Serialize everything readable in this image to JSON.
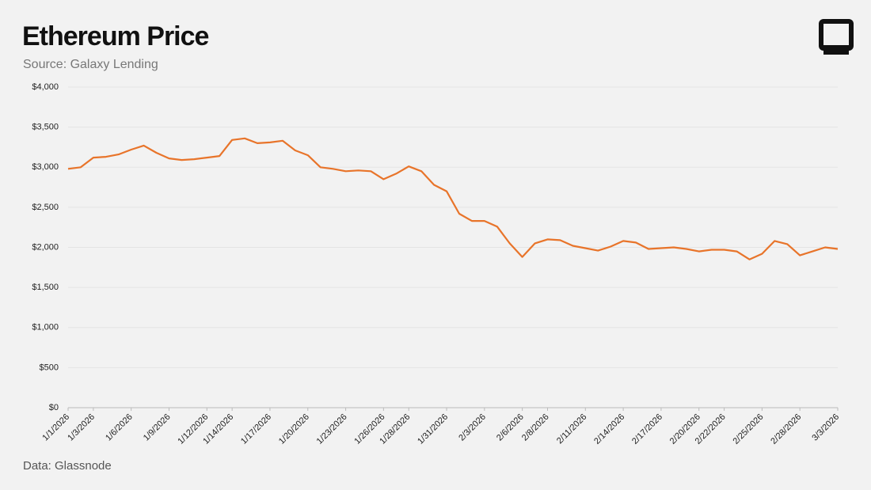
{
  "chart_data": {
    "type": "line",
    "title": "Ethereum Price",
    "subtitle": "Source: Galaxy Lending",
    "note": "Data: Glassnode",
    "x": [
      "1/1/2026",
      "1/2/2026",
      "1/3/2026",
      "1/4/2026",
      "1/5/2026",
      "1/6/2026",
      "1/7/2026",
      "1/8/2026",
      "1/9/2026",
      "1/10/2026",
      "1/11/2026",
      "1/12/2026",
      "1/13/2026",
      "1/14/2026",
      "1/15/2026",
      "1/16/2026",
      "1/17/2026",
      "1/18/2026",
      "1/19/2026",
      "1/20/2026",
      "1/21/2026",
      "1/22/2026",
      "1/23/2026",
      "1/24/2026",
      "1/25/2026",
      "1/26/2026",
      "1/27/2026",
      "1/28/2026",
      "1/29/2026",
      "1/30/2026",
      "1/31/2026",
      "2/1/2026",
      "2/2/2026",
      "2/3/2026",
      "2/4/2026",
      "2/5/2026",
      "2/6/2026",
      "2/7/2026",
      "2/8/2026",
      "2/9/2026",
      "2/10/2026",
      "2/11/2026",
      "2/12/2026",
      "2/13/2026",
      "2/14/2026",
      "2/15/2026",
      "2/16/2026",
      "2/17/2026",
      "2/18/2026",
      "2/19/2026",
      "2/20/2026",
      "2/21/2026",
      "2/22/2026",
      "2/23/2026",
      "2/24/2026",
      "2/25/2026",
      "2/26/2026",
      "2/27/2026",
      "2/28/2026",
      "3/1/2026",
      "3/2/2026",
      "3/3/2026"
    ],
    "series": [
      {
        "name": "Ethereum Price",
        "color": "#e8742a",
        "values": [
          2980,
          3000,
          3120,
          3130,
          3160,
          3220,
          3270,
          3180,
          3110,
          3090,
          3100,
          3120,
          3140,
          3340,
          3360,
          3300,
          3310,
          3330,
          3210,
          3150,
          3000,
          2980,
          2950,
          2960,
          2950,
          2850,
          2920,
          3010,
          2950,
          2780,
          2700,
          2420,
          2330,
          2330,
          2260,
          2050,
          1880,
          2050,
          2100,
          2090,
          2020,
          1990,
          1960,
          2010,
          2080,
          2060,
          1980,
          1990,
          2000,
          1980,
          1950,
          1970,
          1970,
          1950,
          1850,
          1920,
          2080,
          2040,
          1900,
          1950,
          2000,
          1980
        ]
      }
    ],
    "xlim": [
      "1/1/2026",
      "3/3/2026"
    ],
    "xticks": [
      "1/1/2026",
      "1/3/2026",
      "1/6/2026",
      "1/9/2026",
      "1/12/2026",
      "1/14/2026",
      "1/17/2026",
      "1/20/2026",
      "1/23/2026",
      "1/26/2026",
      "1/28/2026",
      "1/31/2026",
      "2/3/2026",
      "2/6/2026",
      "2/8/2026",
      "2/11/2026",
      "2/14/2026",
      "2/17/2026",
      "2/20/2026",
      "2/22/2026",
      "2/25/2026",
      "2/28/2026",
      "3/3/2026"
    ],
    "ylim": [
      0,
      4000
    ],
    "yticks": [
      {
        "value": 0,
        "label": "$0"
      },
      {
        "value": 500,
        "label": "$500"
      },
      {
        "value": 1000,
        "label": "$1,000"
      },
      {
        "value": 1500,
        "label": "$1,500"
      },
      {
        "value": 2000,
        "label": "$2,000"
      },
      {
        "value": 2500,
        "label": "$2,500"
      },
      {
        "value": 3000,
        "label": "$3,000"
      },
      {
        "value": 3500,
        "label": "$3,500"
      },
      {
        "value": 4000,
        "label": "$4,000"
      }
    ],
    "grid": true
  }
}
